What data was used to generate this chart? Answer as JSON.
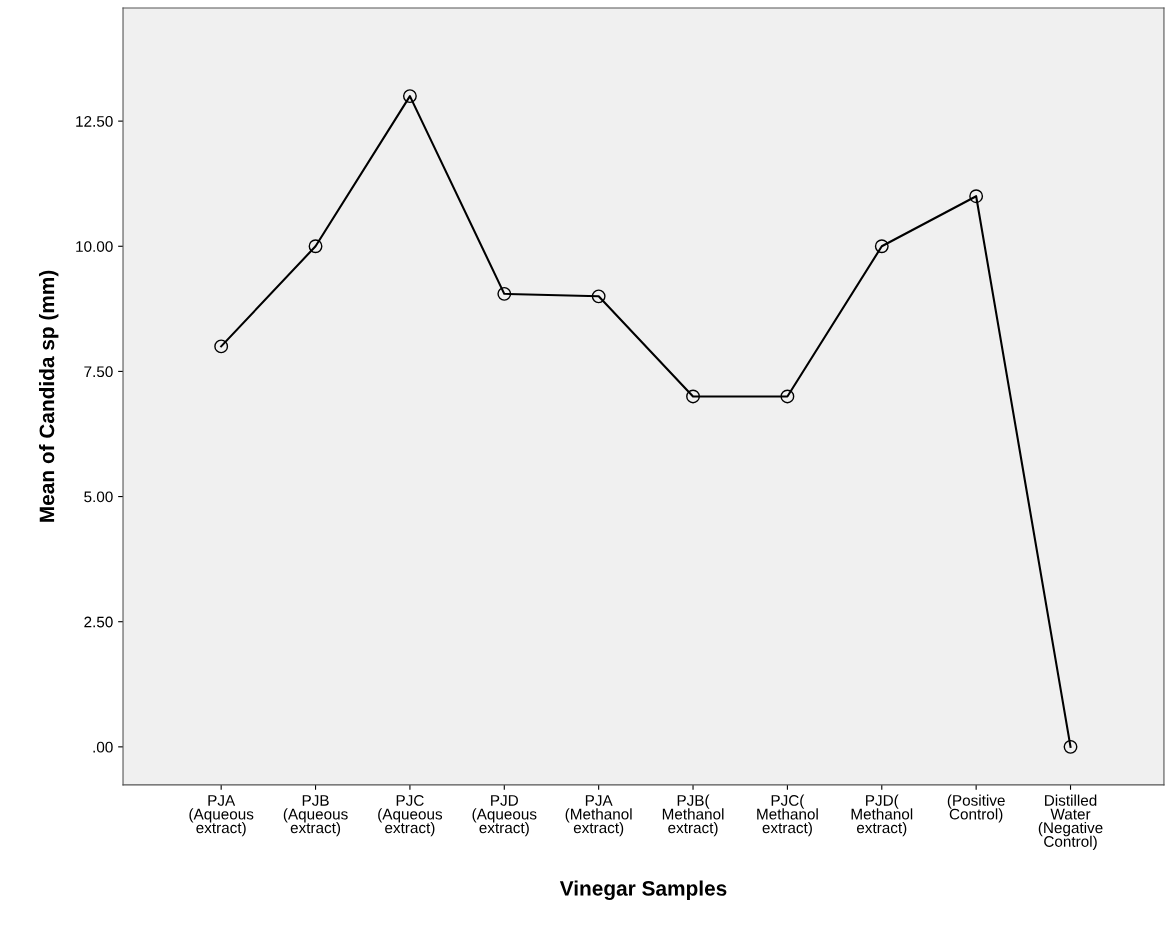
{
  "chart_data": {
    "type": "line",
    "xlabel": "Vinegar Samples",
    "ylabel": "Mean of Candida sp (mm)",
    "categories": [
      "PJA\n(Aqueous\nextract)",
      "PJB\n(Aqueous\nextract)",
      "PJC\n(Aqueous\nextract)",
      "PJD\n(Aqueous\nextract)",
      "PJA\n(Methanol\nextract)",
      "PJB(\nMethanol\nextract)",
      "PJC(\nMethanol\nextract)",
      "PJD(\nMethanol\nextract)",
      "(Positive\nControl)",
      "Distilled\nWater\n(Negative\nControl)"
    ],
    "series": [
      {
        "color": "#000000",
        "values": [
          8,
          10,
          13,
          9.05,
          9,
          7,
          7,
          10,
          11,
          0
        ]
      }
    ],
    "ylim": [
      -0.76,
      14.76
    ],
    "yticks": [
      {
        "value": 0,
        "label": ".00"
      },
      {
        "value": 2.5,
        "label": "2.50"
      },
      {
        "value": 5,
        "label": "5.00"
      },
      {
        "value": 7.5,
        "label": "7.50"
      },
      {
        "value": 10,
        "label": "10.00"
      },
      {
        "value": 12.5,
        "label": "12.50"
      }
    ],
    "grid": false,
    "legend": false,
    "marker": "circle",
    "line_style": "solid"
  }
}
